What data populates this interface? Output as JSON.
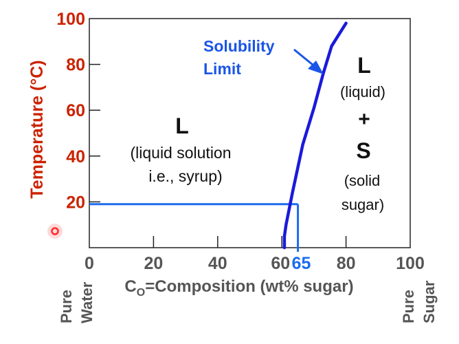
{
  "chart_data": {
    "type": "line",
    "xlabel_prefix": "C",
    "xlabel_subscript": "O",
    "xlabel_rest": "=Composition (wt% sugar)",
    "ylabel": "Temperature (°C)",
    "xlim": [
      0,
      100
    ],
    "ylim": [
      0,
      100
    ],
    "x_ticks": [
      "0",
      "20",
      "40",
      "60",
      "80",
      "100"
    ],
    "x_tick_values": [
      0,
      20,
      40,
      60,
      80,
      100
    ],
    "x_marker_label": "65",
    "x_marker_value": 65,
    "y_ticks": [
      "20",
      "40",
      "60",
      "80",
      "100"
    ],
    "y_tick_values": [
      20,
      40,
      60,
      80,
      100
    ],
    "x_end_labels": {
      "left": [
        "Pure",
        "Water"
      ],
      "right": [
        "Pure",
        "Sugar"
      ]
    },
    "series": [
      {
        "name": "Solubility Limit",
        "x": [
          60.8,
          60.8,
          61.3,
          63.3,
          66.5,
          70.0,
          72.9,
          75.5,
          80.0
        ],
        "y": [
          0,
          5,
          10,
          24,
          45,
          61,
          76,
          88,
          98
        ]
      }
    ],
    "reference_lines": {
      "temperature": 19,
      "composition": 65
    },
    "annotations": {
      "solubility_label": [
        "Solubility",
        "Limit"
      ],
      "left_region": {
        "symbol": "L",
        "desc": [
          "(liquid solution",
          "i.e., syrup)"
        ]
      },
      "right_region": {
        "lines": [
          "L",
          "(liquid)",
          "+",
          "S",
          "(solid",
          "sugar)"
        ]
      }
    },
    "grid": false
  },
  "colors": {
    "axis_label": "#cc2200",
    "curve": "#1a1adb",
    "reference": "#1a6cf0",
    "label_blue": "#1a55e8",
    "tick_gray": "#555555",
    "cursor": "#ff2a2a"
  }
}
